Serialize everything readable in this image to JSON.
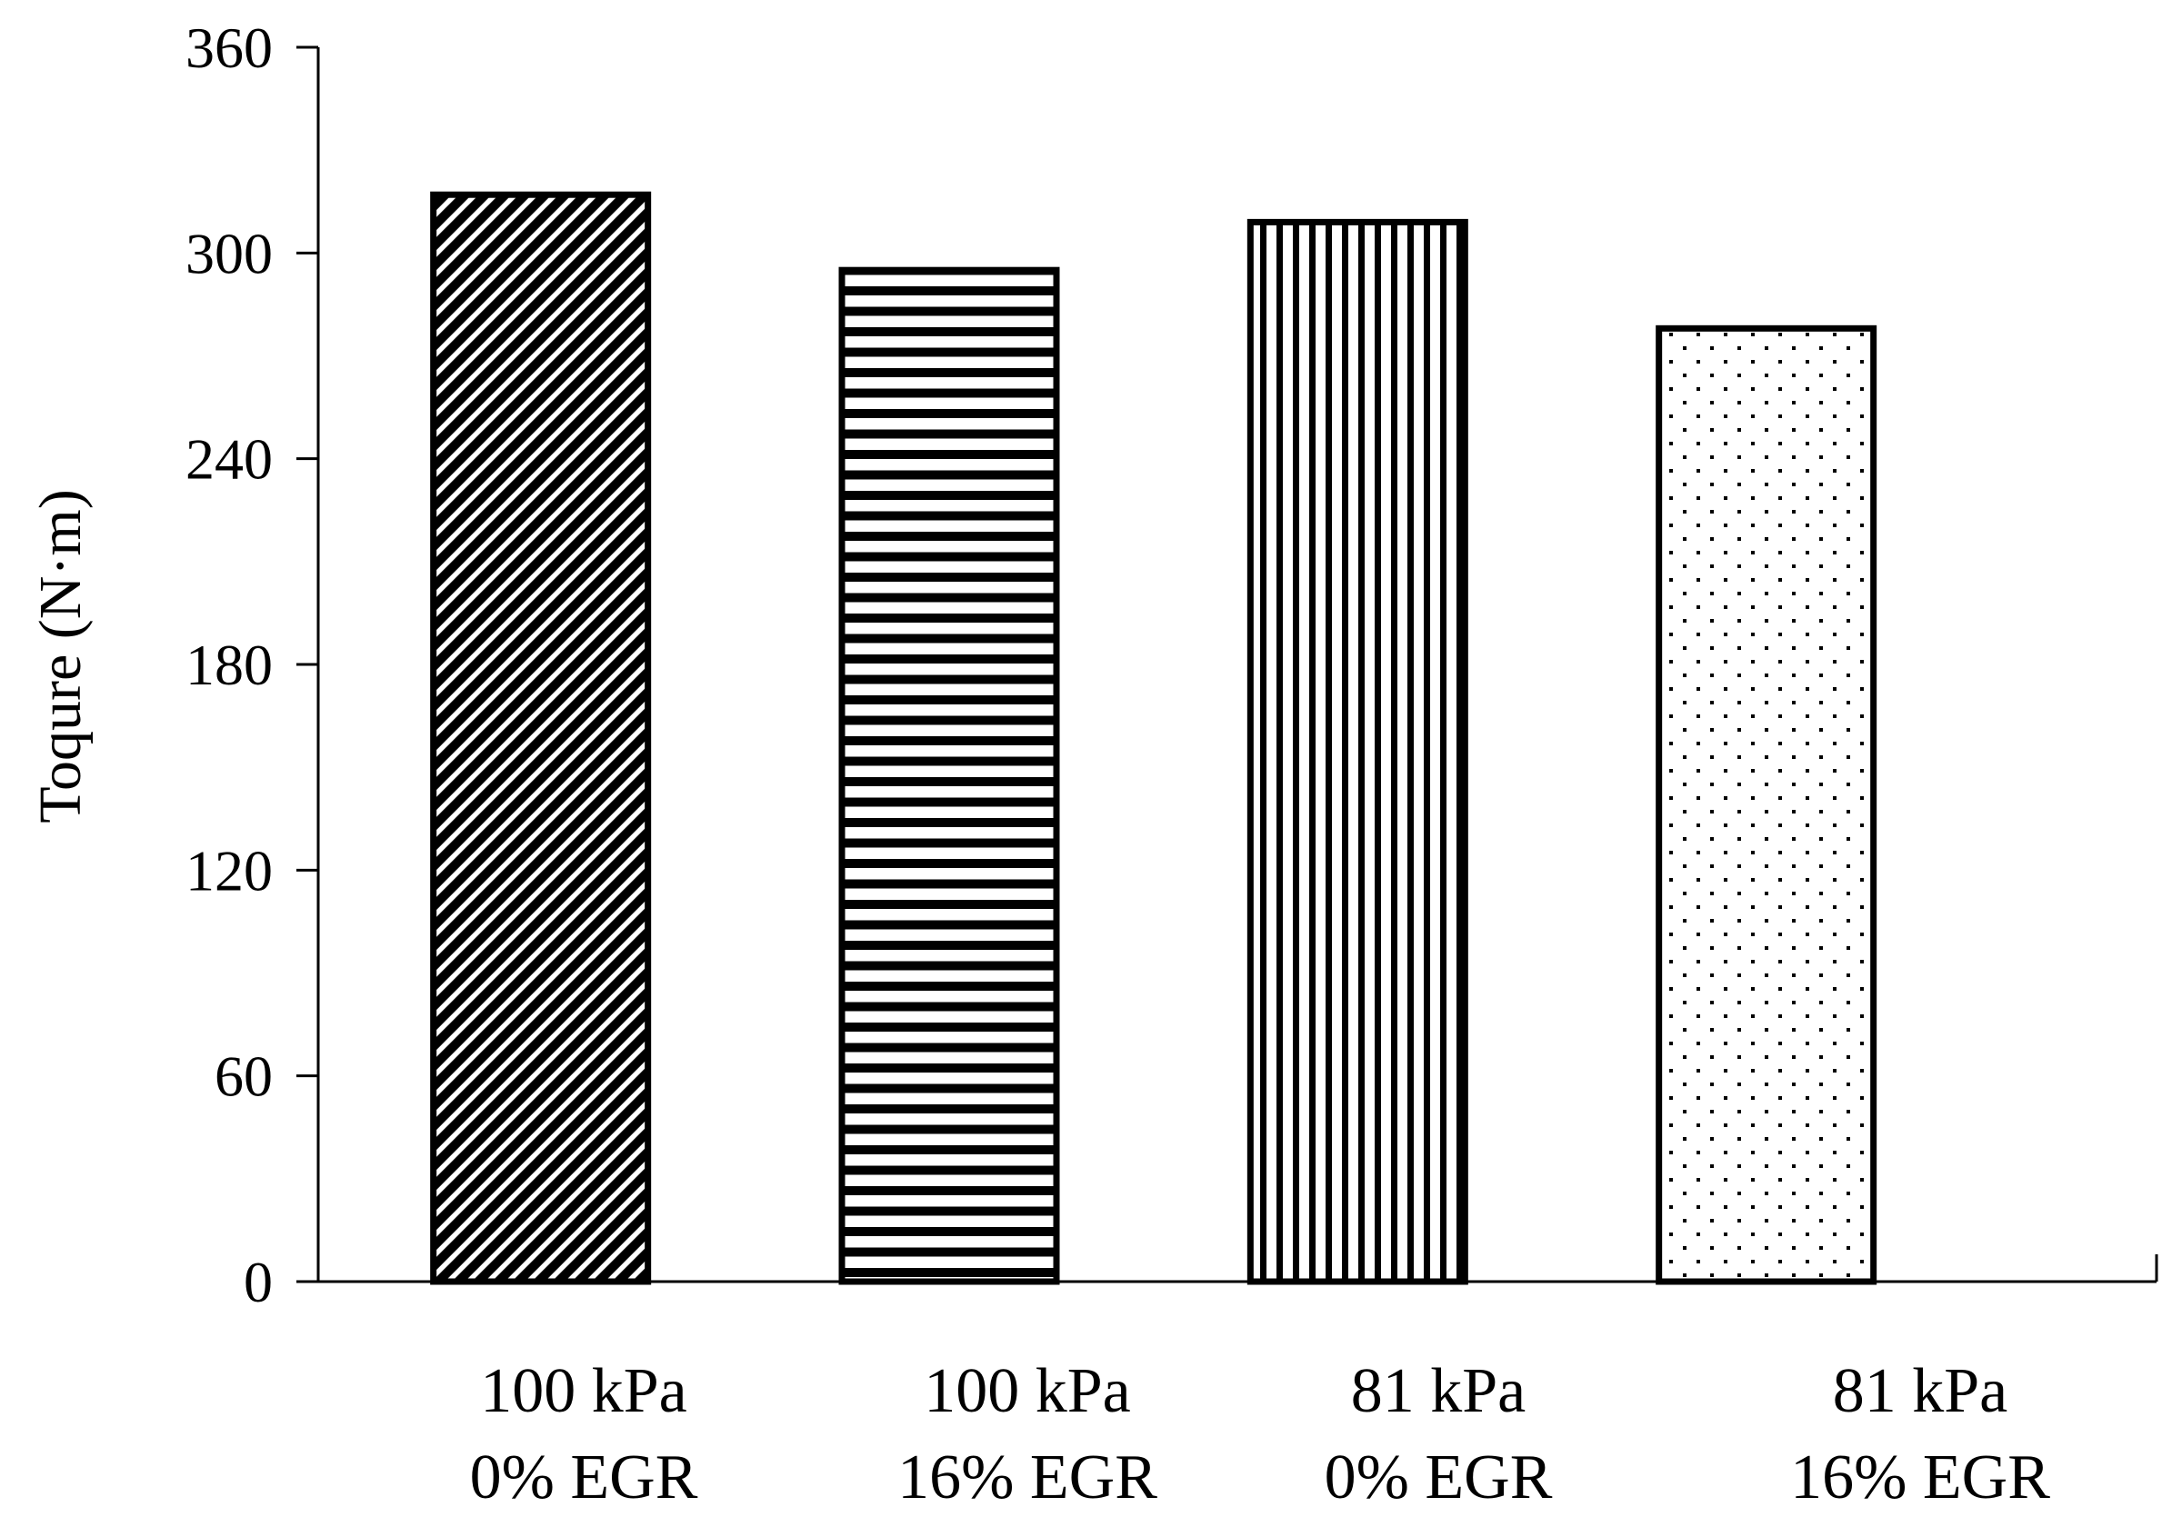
{
  "chart_data": {
    "type": "bar",
    "title": "",
    "xlabel": "",
    "ylabel": "Toqure (N·m)",
    "ylim": [
      0,
      360
    ],
    "yticks": [
      0,
      60,
      120,
      180,
      240,
      300,
      360
    ],
    "grid": false,
    "legend": "none",
    "categories": [
      {
        "line1": "100 kPa",
        "line2": "0% EGR"
      },
      {
        "line1": "100 kPa",
        "line2": "16% EGR"
      },
      {
        "line1": "81 kPa",
        "line2": "0% EGR"
      },
      {
        "line1": "81 kPa",
        "line2": "16% EGR"
      }
    ],
    "values": [
      317,
      295,
      309,
      278
    ],
    "fills": [
      "diagonal-hatch",
      "horizontal-hatch",
      "vertical-hatch",
      "dotted"
    ],
    "colors": {
      "stroke": "#000000",
      "background": "#ffffff"
    }
  }
}
